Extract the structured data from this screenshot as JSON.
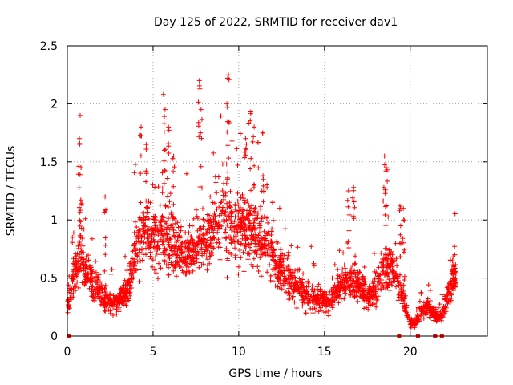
{
  "chart_data": {
    "type": "scatter",
    "title": "Day 125 of 2022, SRMTID for receiver dav1",
    "xlabel": "GPS time / hours",
    "ylabel": "SRMTID / TECUs",
    "xlim": [
      0,
      24.5
    ],
    "ylim": [
      0,
      2.5
    ],
    "grid": true,
    "x_ticks": [
      0,
      5,
      10,
      15,
      20
    ],
    "x_tick_labels": [
      "0",
      "5",
      "10",
      "15",
      "20"
    ],
    "y_ticks": [
      0,
      0.5,
      1,
      1.5,
      2,
      2.5
    ],
    "y_tick_labels": [
      "0",
      "0.5",
      "1",
      "1.5",
      "2",
      "2.5"
    ],
    "marker": "+",
    "series": [
      {
        "name": "dav1",
        "color": "#ff0000",
        "profile": [
          [
            0.0,
            0.25
          ],
          [
            0.3,
            0.45
          ],
          [
            0.6,
            0.6
          ],
          [
            0.8,
            0.7
          ],
          [
            1.0,
            0.55
          ],
          [
            1.5,
            0.45
          ],
          [
            2.0,
            0.35
          ],
          [
            2.5,
            0.28
          ],
          [
            3.0,
            0.3
          ],
          [
            3.5,
            0.4
          ],
          [
            4.0,
            0.75
          ],
          [
            4.5,
            0.9
          ],
          [
            5.0,
            0.85
          ],
          [
            5.5,
            0.9
          ],
          [
            6.0,
            0.85
          ],
          [
            6.5,
            0.75
          ],
          [
            7.0,
            0.7
          ],
          [
            7.5,
            0.75
          ],
          [
            8.0,
            0.85
          ],
          [
            8.5,
            0.95
          ],
          [
            9.0,
            1.05
          ],
          [
            9.5,
            1.0
          ],
          [
            10.0,
            0.9
          ],
          [
            10.5,
            0.95
          ],
          [
            11.0,
            0.85
          ],
          [
            11.5,
            0.8
          ],
          [
            12.0,
            0.7
          ],
          [
            12.5,
            0.55
          ],
          [
            13.0,
            0.45
          ],
          [
            13.5,
            0.4
          ],
          [
            14.0,
            0.38
          ],
          [
            14.5,
            0.33
          ],
          [
            15.0,
            0.3
          ],
          [
            15.5,
            0.33
          ],
          [
            16.0,
            0.45
          ],
          [
            16.5,
            0.5
          ],
          [
            17.0,
            0.45
          ],
          [
            17.5,
            0.35
          ],
          [
            18.0,
            0.4
          ],
          [
            18.5,
            0.6
          ],
          [
            19.0,
            0.55
          ],
          [
            19.5,
            0.4
          ],
          [
            19.8,
            0.2
          ],
          [
            20.0,
            0.12
          ],
          [
            20.3,
            0.1
          ],
          [
            20.6,
            0.2
          ],
          [
            21.0,
            0.25
          ],
          [
            21.3,
            0.2
          ],
          [
            21.6,
            0.15
          ],
          [
            21.9,
            0.2
          ],
          [
            22.2,
            0.35
          ],
          [
            22.5,
            0.5
          ],
          [
            22.7,
            0.55
          ]
        ],
        "spikes": [
          [
            0.75,
            1.9
          ],
          [
            0.7,
            1.7
          ],
          [
            0.8,
            1.45
          ],
          [
            2.2,
            1.2
          ],
          [
            4.3,
            1.8
          ],
          [
            4.6,
            1.65
          ],
          [
            5.6,
            2.08
          ],
          [
            5.7,
            1.95
          ],
          [
            5.9,
            1.8
          ],
          [
            6.2,
            1.55
          ],
          [
            7.7,
            2.2
          ],
          [
            7.8,
            1.95
          ],
          [
            9.4,
            2.25
          ],
          [
            9.35,
            2.22
          ],
          [
            10.7,
            1.93
          ],
          [
            10.9,
            1.8
          ],
          [
            10.4,
            1.7
          ],
          [
            11.4,
            1.75
          ],
          [
            18.5,
            1.55
          ],
          [
            18.6,
            1.45
          ],
          [
            16.7,
            1.28
          ],
          [
            16.4,
            1.25
          ],
          [
            19.4,
            1.12
          ],
          [
            19.6,
            1.1
          ],
          [
            22.6,
            0.7
          ]
        ],
        "zeros": [
          0.1,
          19.35,
          20.45,
          21.45,
          21.85
        ]
      }
    ]
  }
}
